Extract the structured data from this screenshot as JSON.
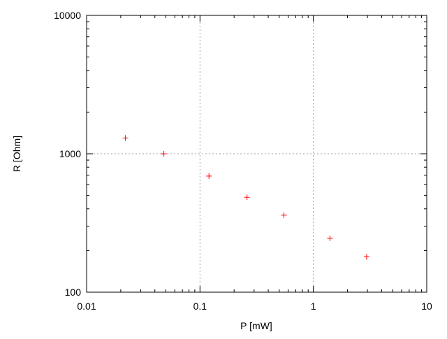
{
  "chart_data": {
    "type": "scatter",
    "xlabel": "P [mW]",
    "ylabel": "R [Ohm]",
    "xscale": "log",
    "yscale": "log",
    "xlim": [
      0.01,
      10
    ],
    "ylim": [
      100,
      10000
    ],
    "grid": true,
    "xticks": [
      {
        "v": 0.01,
        "label": "0.01"
      },
      {
        "v": 0.1,
        "label": "0.1"
      },
      {
        "v": 1,
        "label": "1"
      },
      {
        "v": 10,
        "label": "10"
      }
    ],
    "yticks": [
      {
        "v": 100,
        "label": "100"
      },
      {
        "v": 1000,
        "label": "1000"
      },
      {
        "v": 10000,
        "label": "10000"
      }
    ],
    "series": [
      {
        "color": "#ff0000",
        "marker": "plus",
        "points": [
          [
            0.022,
            1300
          ],
          [
            0.048,
            1000
          ],
          [
            0.12,
            690
          ],
          [
            0.26,
            485
          ],
          [
            0.55,
            360
          ],
          [
            1.4,
            245
          ],
          [
            2.95,
            180
          ]
        ]
      }
    ]
  }
}
